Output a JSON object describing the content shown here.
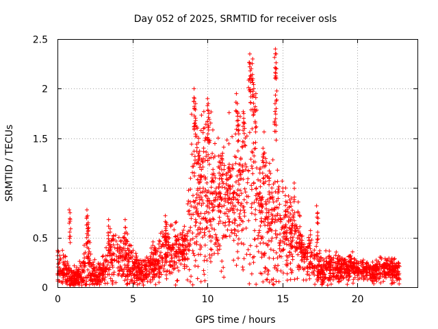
{
  "chart_data": {
    "type": "scatter",
    "title": "Day 052 of 2025, SRMTID for receiver osls",
    "xlabel": "GPS time / hours",
    "ylabel": "SRMTID / TECUs",
    "xlim": [
      0,
      24
    ],
    "ylim": [
      0,
      2.5
    ],
    "xticks": [
      "0",
      "5",
      "10",
      "15",
      "20"
    ],
    "yticks": [
      "0",
      "0.5",
      "1",
      "1.5",
      "2",
      "2.5"
    ],
    "grid": true,
    "marker": "+",
    "series_color": "#ff0000",
    "profile": [
      [
        0.0,
        0.2,
        0.1
      ],
      [
        0.5,
        0.15,
        0.1
      ],
      [
        1.0,
        0.08,
        0.05
      ],
      [
        1.5,
        0.1,
        0.06
      ],
      [
        2.0,
        0.25,
        0.2
      ],
      [
        2.5,
        0.1,
        0.06
      ],
      [
        3.0,
        0.15,
        0.08
      ],
      [
        3.5,
        0.3,
        0.15
      ],
      [
        4.0,
        0.28,
        0.14
      ],
      [
        4.5,
        0.32,
        0.15
      ],
      [
        5.0,
        0.22,
        0.12
      ],
      [
        5.5,
        0.15,
        0.07
      ],
      [
        6.0,
        0.18,
        0.08
      ],
      [
        6.5,
        0.25,
        0.1
      ],
      [
        7.0,
        0.35,
        0.12
      ],
      [
        7.5,
        0.4,
        0.15
      ],
      [
        8.0,
        0.38,
        0.12
      ],
      [
        8.5,
        0.4,
        0.12
      ],
      [
        9.0,
        0.8,
        0.45
      ],
      [
        9.5,
        0.9,
        0.4
      ],
      [
        10.0,
        0.95,
        0.4
      ],
      [
        10.5,
        0.8,
        0.3
      ],
      [
        11.0,
        0.85,
        0.3
      ],
      [
        11.5,
        0.9,
        0.3
      ],
      [
        12.0,
        0.85,
        0.35
      ],
      [
        12.5,
        0.95,
        0.45
      ],
      [
        13.0,
        1.0,
        0.5
      ],
      [
        13.5,
        0.75,
        0.3
      ],
      [
        14.0,
        0.7,
        0.35
      ],
      [
        14.5,
        0.65,
        0.35
      ],
      [
        15.0,
        0.55,
        0.25
      ],
      [
        15.5,
        0.5,
        0.2
      ],
      [
        16.0,
        0.5,
        0.2
      ],
      [
        16.5,
        0.3,
        0.1
      ],
      [
        17.0,
        0.25,
        0.12
      ],
      [
        17.5,
        0.18,
        0.08
      ],
      [
        18.0,
        0.18,
        0.07
      ],
      [
        18.5,
        0.2,
        0.07
      ],
      [
        19.0,
        0.18,
        0.06
      ],
      [
        19.5,
        0.2,
        0.07
      ],
      [
        20.0,
        0.18,
        0.06
      ],
      [
        20.5,
        0.16,
        0.05
      ],
      [
        21.0,
        0.15,
        0.05
      ],
      [
        21.5,
        0.17,
        0.06
      ],
      [
        22.0,
        0.18,
        0.06
      ],
      [
        22.8,
        0.16,
        0.06
      ]
    ],
    "x_range": [
      0.0,
      22.8
    ],
    "n_points": 2600,
    "spikes": [
      [
        0.8,
        0.78
      ],
      [
        0.85,
        0.75
      ],
      [
        1.95,
        0.78
      ],
      [
        2.0,
        0.72
      ],
      [
        2.05,
        0.65
      ],
      [
        9.1,
        2.0
      ],
      [
        9.15,
        1.9
      ],
      [
        9.2,
        1.85
      ],
      [
        9.3,
        1.6
      ],
      [
        9.4,
        1.5
      ],
      [
        10.0,
        1.9
      ],
      [
        10.05,
        1.85
      ],
      [
        10.1,
        1.75
      ],
      [
        11.0,
        1.35
      ],
      [
        11.9,
        1.95
      ],
      [
        12.0,
        1.85
      ],
      [
        12.05,
        1.75
      ],
      [
        12.4,
        1.75
      ],
      [
        12.5,
        1.65
      ],
      [
        12.8,
        2.35
      ],
      [
        12.85,
        2.25
      ],
      [
        12.9,
        2.2
      ],
      [
        13.0,
        2.3
      ],
      [
        13.05,
        2.1
      ],
      [
        13.1,
        2.0
      ],
      [
        13.2,
        1.95
      ],
      [
        13.7,
        1.4
      ],
      [
        13.75,
        1.35
      ],
      [
        14.5,
        2.4
      ],
      [
        14.55,
        2.35
      ],
      [
        14.6,
        2.2
      ],
      [
        14.5,
        1.85
      ],
      [
        14.55,
        1.8
      ],
      [
        15.8,
        1.05
      ],
      [
        17.3,
        0.82
      ],
      [
        17.35,
        0.75
      ],
      [
        3.4,
        0.68
      ],
      [
        4.5,
        0.68
      ],
      [
        4.55,
        0.6
      ],
      [
        7.2,
        0.72
      ],
      [
        7.25,
        0.65
      ],
      [
        9.5,
        1.3
      ],
      [
        10.3,
        1.1
      ],
      [
        10.8,
        1.15
      ],
      [
        11.4,
        1.2
      ],
      [
        12.2,
        1.3
      ],
      [
        13.5,
        1.2
      ],
      [
        14.1,
        1.1
      ],
      [
        14.3,
        0.95
      ],
      [
        15.2,
        1.0
      ]
    ]
  }
}
